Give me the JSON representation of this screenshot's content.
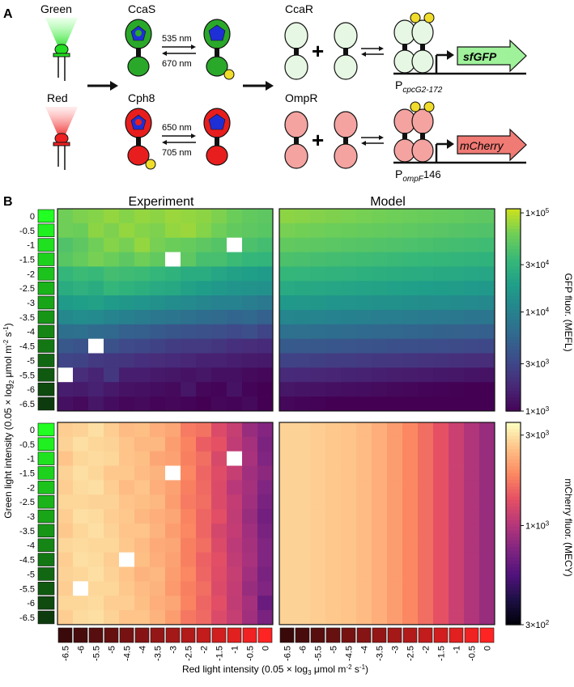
{
  "panel_a": {
    "label": "A",
    "green_led_label": "Green",
    "red_led_label": "Red",
    "ccas_label": "CcaS",
    "cph8_label": "Cph8",
    "ccar_label": "CcaR",
    "ompr_label": "OmpR",
    "ccas_forward_nm": "535 nm",
    "ccas_reverse_nm": "670 nm",
    "cph8_forward_nm": "650 nm",
    "cph8_reverse_nm": "705 nm",
    "plus": "+",
    "promoter_top_p": "P",
    "promoter_top_sub": "cpcG2-172",
    "promoter_bottom_p": "P",
    "promoter_bottom_sub": "ompF",
    "promoter_bottom_num": "146",
    "gene_top": "sfGFP",
    "gene_bottom": "mCherry",
    "colors": {
      "green_led": "#22dd22",
      "red_led": "#ee2222",
      "ccas_fill": "#2aa82a",
      "cph8_fill": "#e81e1e",
      "chromophore": "#1f2fd6",
      "phosphate": "#f0dc2a",
      "ccar_fill": "#e6f8e3",
      "ompr_fill": "#f4a3a0",
      "sfgfp_fill": "#9ff19a",
      "mcherry_fill": "#f07a74"
    }
  },
  "panel_b": {
    "label": "B",
    "experiment_title": "Experiment",
    "model_title": "Model",
    "y_axis_label_pre": "Green light intensity (0.05 × log",
    "y_axis_label_sub": "2",
    "y_axis_label_mid": " μmol m",
    "y_axis_label_sup1": "-2",
    "y_axis_label_mid2": " s",
    "y_axis_label_sup2": "-1",
    "y_axis_label_post": ")",
    "x_axis_label_pre": "Red light intensity (0.05 × log",
    "x_axis_label_sub": "3",
    "x_axis_label_mid": " μmol m",
    "x_axis_label_sup1": "-2",
    "x_axis_label_mid2": " s",
    "x_axis_label_sup2": "-1",
    "x_axis_label_post": ")",
    "gfp_colorbar": {
      "label": "GFP fluor. (MEFL)",
      "ticks": [
        {
          "value": 100000,
          "m": "1×10",
          "e": "5"
        },
        {
          "value": 30000,
          "m": "3×10",
          "e": "4"
        },
        {
          "value": 10000,
          "m": "1×10",
          "e": "4"
        },
        {
          "value": 3000,
          "m": "3×10",
          "e": "3"
        },
        {
          "value": 1000,
          "m": "1×10",
          "e": "3"
        }
      ],
      "range": [
        1000,
        110000
      ]
    },
    "mcherry_colorbar": {
      "label": "mCherry fluor. (MECY)",
      "ticks": [
        {
          "value": 3000,
          "m": "3×10",
          "e": "3"
        },
        {
          "value": 1000,
          "m": "1×10",
          "e": "3"
        },
        {
          "value": 300,
          "m": "3×10",
          "e": "2"
        }
      ],
      "range": [
        300,
        3500
      ]
    }
  },
  "chart_data": [
    {
      "type": "heatmap",
      "title": "Experiment",
      "x": [
        "-6.5",
        "-6",
        "-5.5",
        "-5",
        "-4.5",
        "-4",
        "-3.5",
        "-3",
        "-2.5",
        "-2",
        "-1.5",
        "-1",
        "-0.5",
        "0"
      ],
      "y": [
        "0",
        "-0.5",
        "-1",
        "-1.5",
        "-2",
        "-2.5",
        "-3",
        "-3.5",
        "-4",
        "-4.5",
        "-5",
        "-5.5",
        "-6",
        "-6.5"
      ],
      "value_label": "GFP fluor. (MEFL)",
      "missing": [
        [
          2,
          11
        ],
        [
          3,
          7
        ],
        [
          9,
          2
        ],
        [
          11,
          0
        ]
      ],
      "values_log10": [
        [
          4.8,
          4.84,
          4.86,
          4.9,
          4.86,
          4.9,
          4.88,
          4.92,
          4.9,
          4.88,
          4.84,
          4.78,
          4.74,
          4.72
        ],
        [
          4.8,
          4.78,
          4.88,
          4.84,
          4.9,
          4.86,
          4.84,
          4.9,
          4.92,
          4.86,
          4.8,
          4.74,
          4.72,
          4.7
        ],
        [
          4.66,
          4.72,
          4.8,
          4.86,
          4.82,
          4.9,
          4.82,
          4.78,
          4.76,
          4.72,
          4.68,
          4.0,
          4.64,
          4.6
        ],
        [
          4.7,
          4.76,
          4.82,
          4.78,
          4.72,
          4.8,
          4.74,
          4.0,
          4.72,
          4.62,
          4.62,
          4.56,
          4.52,
          4.5
        ],
        [
          4.52,
          4.56,
          4.54,
          4.6,
          4.58,
          4.56,
          4.52,
          4.48,
          4.42,
          4.42,
          4.36,
          4.32,
          4.3,
          4.26
        ],
        [
          4.42,
          4.46,
          4.42,
          4.52,
          4.48,
          4.44,
          4.4,
          4.38,
          4.32,
          4.28,
          4.24,
          4.2,
          4.18,
          4.16
        ],
        [
          4.26,
          4.3,
          4.32,
          4.26,
          4.22,
          4.2,
          4.16,
          4.12,
          4.1,
          4.06,
          4.02,
          4.02,
          3.98,
          3.94
        ],
        [
          4.08,
          4.12,
          4.1,
          4.04,
          4.0,
          3.96,
          3.92,
          3.9,
          3.86,
          3.82,
          3.8,
          3.76,
          3.78,
          3.72
        ],
        [
          3.84,
          3.86,
          3.8,
          3.78,
          3.72,
          3.7,
          3.66,
          3.62,
          3.6,
          3.58,
          3.56,
          3.52,
          3.56,
          3.48
        ],
        [
          3.64,
          3.6,
          3.0,
          3.58,
          3.52,
          3.5,
          3.46,
          3.42,
          3.4,
          3.4,
          3.36,
          3.32,
          3.3,
          3.28
        ],
        [
          3.48,
          3.46,
          3.4,
          3.38,
          3.36,
          3.32,
          3.3,
          3.28,
          3.26,
          3.22,
          3.22,
          3.2,
          3.18,
          3.16
        ],
        [
          3.0,
          3.3,
          3.24,
          3.38,
          3.2,
          3.2,
          3.16,
          3.14,
          3.12,
          3.14,
          3.1,
          3.1,
          3.06,
          3.04
        ],
        [
          3.2,
          3.18,
          3.22,
          3.16,
          3.12,
          3.1,
          3.08,
          3.06,
          3.14,
          3.04,
          3.02,
          3.12,
          3.02,
          3.0
        ],
        [
          3.1,
          3.06,
          3.14,
          3.08,
          3.04,
          3.06,
          3.02,
          3.04,
          3.02,
          3.0,
          3.04,
          3.02,
          3.06,
          3.0
        ]
      ]
    },
    {
      "type": "heatmap",
      "title": "Model",
      "x": [
        "-6.5",
        "-6",
        "-5.5",
        "-5",
        "-4.5",
        "-4",
        "-3.5",
        "-3",
        "-2.5",
        "-2",
        "-1.5",
        "-1",
        "-0.5",
        "0"
      ],
      "y": [
        "0",
        "-0.5",
        "-1",
        "-1.5",
        "-2",
        "-2.5",
        "-3",
        "-3.5",
        "-4",
        "-4.5",
        "-5",
        "-5.5",
        "-6",
        "-6.5"
      ],
      "value_label": "GFP fluor. (MEFL)",
      "row_log10": [
        4.88,
        4.82,
        4.74,
        4.64,
        4.52,
        4.4,
        4.24,
        4.06,
        3.86,
        3.66,
        3.46,
        3.28,
        3.14,
        3.04
      ],
      "col_drop_log10": 0.16
    },
    {
      "type": "heatmap",
      "title": "",
      "x": [
        "-6.5",
        "-6",
        "-5.5",
        "-5",
        "-4.5",
        "-4",
        "-3.5",
        "-3",
        "-2.5",
        "-2",
        "-1.5",
        "-1",
        "-0.5",
        "0"
      ],
      "y": [
        "0",
        "-0.5",
        "-1",
        "-1.5",
        "-2",
        "-2.5",
        "-3",
        "-3.5",
        "-4",
        "-4.5",
        "-5",
        "-5.5",
        "-6",
        "-6.5"
      ],
      "value_label": "mCherry fluor. (MECY)",
      "missing": [
        [
          2,
          11
        ],
        [
          3,
          7
        ],
        [
          9,
          4
        ],
        [
          11,
          1
        ]
      ],
      "col_log10": [
        3.44,
        3.46,
        3.46,
        3.44,
        3.42,
        3.4,
        3.37,
        3.33,
        3.26,
        3.2,
        3.12,
        3.04,
        2.96,
        2.88
      ],
      "noise": [
        [
          0,
          -0.01,
          0.02,
          0,
          -0.02,
          0.01,
          0,
          0.02,
          -0.01,
          0.03,
          0,
          0.02,
          -0.02,
          0.01
        ],
        [
          0.01,
          0.02,
          0,
          0.01,
          0,
          -0.01,
          0.02,
          0,
          0.01,
          -0.02,
          0.03,
          0,
          0.01,
          -0.01
        ],
        [
          -0.02,
          0,
          0.01,
          0.02,
          0,
          0.01,
          -0.02,
          0.01,
          0,
          0.02,
          -0.01,
          0,
          0.02,
          0
        ],
        [
          0.01,
          0.02,
          0,
          -0.01,
          0.01,
          0,
          0.01,
          0,
          0.02,
          0,
          0.01,
          0.02,
          0,
          0.03
        ],
        [
          0,
          0.01,
          0.02,
          0,
          -0.02,
          0.02,
          0,
          0.01,
          0,
          0.01,
          0,
          -0.02,
          0.01,
          0
        ],
        [
          0.02,
          0,
          -0.01,
          0.01,
          0,
          0.01,
          0.02,
          0,
          -0.01,
          0.02,
          0,
          0.01,
          0,
          -0.02
        ],
        [
          0,
          0.02,
          0.01,
          0,
          0.01,
          -0.01,
          0,
          0.02,
          0.01,
          0,
          0.02,
          0,
          -0.02,
          -0.04
        ],
        [
          -0.01,
          0,
          0.02,
          0.01,
          0,
          0.02,
          0.01,
          0,
          0.02,
          0,
          -0.02,
          0.01,
          0,
          -0.02
        ],
        [
          0.02,
          0.01,
          0,
          0.02,
          0.01,
          0,
          -0.01,
          0.02,
          0,
          0.02,
          0,
          -0.01,
          0.01,
          0
        ],
        [
          0,
          0.02,
          0.01,
          0,
          0.02,
          0.01,
          0,
          0.01,
          0,
          -0.01,
          0.02,
          0,
          0.02,
          0
        ],
        [
          0.01,
          0,
          0.02,
          0.01,
          0,
          -0.02,
          0.02,
          0,
          0.02,
          0,
          0.01,
          0.02,
          0,
          -0.02
        ],
        [
          0,
          0.01,
          0,
          0.02,
          0.01,
          0,
          0.01,
          -0.01,
          0,
          0.02,
          0,
          0.01,
          -0.02,
          0
        ],
        [
          0.02,
          0,
          0.01,
          0,
          0.02,
          0.01,
          0,
          0.02,
          0.01,
          0,
          0.02,
          0,
          0.01,
          -0.06
        ],
        [
          0,
          0.01,
          0.02,
          0.01,
          0,
          0.02,
          0.01,
          0,
          -0.02,
          0.01,
          0,
          0.02,
          0,
          -0.02
        ]
      ]
    },
    {
      "type": "heatmap",
      "title": "",
      "x": [
        "-6.5",
        "-6",
        "-5.5",
        "-5",
        "-4.5",
        "-4",
        "-3.5",
        "-3",
        "-2.5",
        "-2",
        "-1.5",
        "-1",
        "-0.5",
        "0"
      ],
      "y": [
        "0",
        "-0.5",
        "-1",
        "-1.5",
        "-2",
        "-2.5",
        "-3",
        "-3.5",
        "-4",
        "-4.5",
        "-5",
        "-5.5",
        "-6",
        "-6.5"
      ],
      "value_label": "mCherry fluor. (MECY)",
      "col_log10": [
        3.45,
        3.45,
        3.44,
        3.43,
        3.42,
        3.4,
        3.37,
        3.33,
        3.28,
        3.22,
        3.15,
        3.07,
        3.0,
        2.94
      ]
    }
  ]
}
